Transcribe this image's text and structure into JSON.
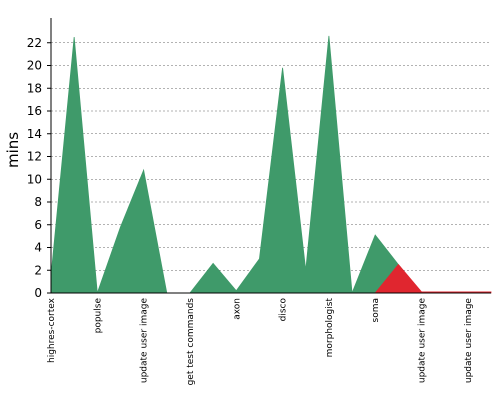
{
  "chart_data": {
    "type": "area",
    "ylabel": "mins",
    "ylim": [
      0,
      24
    ],
    "yticks": [
      0,
      2,
      4,
      6,
      8,
      10,
      12,
      14,
      16,
      18,
      20,
      22
    ],
    "grid": true,
    "colors": {
      "success": "#3f9a6a",
      "failure": "#e0262f",
      "grid": "#666666",
      "axis": "#000000"
    },
    "categories": [
      "highres-cortex",
      "",
      "populse",
      "",
      "update user image",
      "",
      "get test commands",
      "",
      "axon",
      "",
      "disco",
      "",
      "morphologist",
      "",
      "soma",
      "",
      "update user image",
      "",
      "update user image",
      ""
    ],
    "series": [
      {
        "status": "success",
        "values": [
          1.5,
          22.5,
          0.0,
          5.8,
          10.8,
          0.0,
          0.0,
          2.6,
          0.2,
          3.0,
          19.8,
          2.0,
          22.6,
          0.0,
          5.1,
          2.5,
          0.0,
          0.0,
          0.0,
          0.0
        ]
      },
      {
        "status": "failure",
        "values": [
          0,
          0,
          0,
          0,
          0,
          0,
          0,
          0,
          0,
          0,
          0,
          0,
          0,
          0,
          0,
          2.5,
          0.1,
          0.1,
          0.1,
          0.1
        ]
      }
    ]
  }
}
